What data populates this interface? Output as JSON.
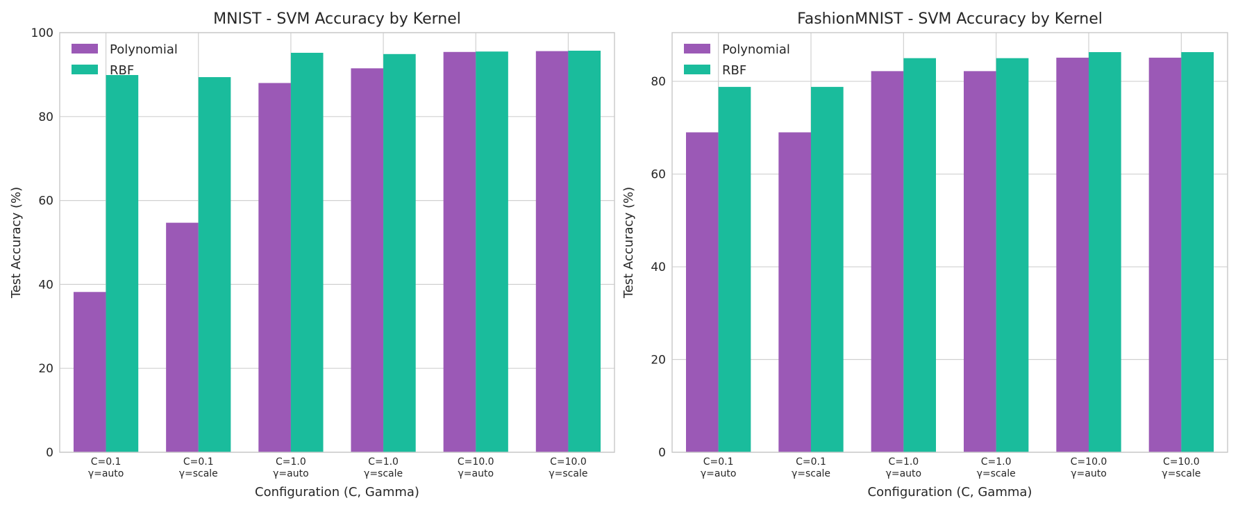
{
  "chart_data": [
    {
      "type": "bar",
      "title": "MNIST - SVM Accuracy by Kernel",
      "xlabel": "Configuration (C, Gamma)",
      "ylabel": "Test Accuracy (%)",
      "ylim": [
        0,
        100
      ],
      "yticks": [
        0,
        20,
        40,
        60,
        80,
        100
      ],
      "grid": true,
      "legend_position": "top-left",
      "categories": [
        [
          "C=0.1",
          "γ=auto"
        ],
        [
          "C=0.1",
          "γ=scale"
        ],
        [
          "C=1.0",
          "γ=auto"
        ],
        [
          "C=1.0",
          "γ=scale"
        ],
        [
          "C=10.0",
          "γ=auto"
        ],
        [
          "C=10.0",
          "γ=scale"
        ]
      ],
      "series": [
        {
          "name": "Polynomial",
          "color": "#9b59b6",
          "values": [
            38.2,
            54.7,
            88.0,
            91.5,
            95.4,
            95.6
          ]
        },
        {
          "name": "RBF",
          "color": "#1abc9c",
          "values": [
            89.9,
            89.4,
            95.2,
            94.9,
            95.5,
            95.7
          ]
        }
      ]
    },
    {
      "type": "bar",
      "title": "FashionMNIST - SVM Accuracy by Kernel",
      "xlabel": "Configuration (C, Gamma)",
      "ylabel": "Test Accuracy (%)",
      "ylim": [
        0,
        90.5
      ],
      "yticks": [
        0,
        20,
        40,
        60,
        80
      ],
      "grid": true,
      "legend_position": "top-left",
      "categories": [
        [
          "C=0.1",
          "γ=auto"
        ],
        [
          "C=0.1",
          "γ=scale"
        ],
        [
          "C=1.0",
          "γ=auto"
        ],
        [
          "C=1.0",
          "γ=scale"
        ],
        [
          "C=10.0",
          "γ=auto"
        ],
        [
          "C=10.0",
          "γ=scale"
        ]
      ],
      "series": [
        {
          "name": "Polynomial",
          "color": "#9b59b6",
          "values": [
            69.0,
            69.0,
            82.2,
            82.2,
            85.1,
            85.1
          ]
        },
        {
          "name": "RBF",
          "color": "#1abc9c",
          "values": [
            78.8,
            78.8,
            85.0,
            85.0,
            86.3,
            86.3
          ]
        }
      ]
    }
  ]
}
